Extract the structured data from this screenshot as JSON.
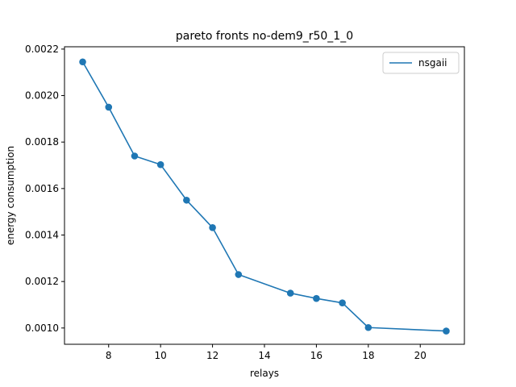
{
  "chart_data": {
    "type": "line",
    "title": "pareto fronts no-dem9_r50_1_0",
    "xlabel": "relays",
    "ylabel": "energy consumption",
    "xlim": [
      6.3,
      21.7
    ],
    "ylim": [
      0.00093,
      0.00221
    ],
    "xticks": [
      8,
      10,
      12,
      14,
      16,
      18,
      20
    ],
    "xtick_labels": [
      "8",
      "10",
      "12",
      "14",
      "16",
      "18",
      "20"
    ],
    "yticks": [
      0.001,
      0.0012,
      0.0014,
      0.0016,
      0.0018,
      0.002,
      0.0022
    ],
    "ytick_labels": [
      "0.0010",
      "0.0012",
      "0.0014",
      "0.0016",
      "0.0018",
      "0.0020",
      "0.0022"
    ],
    "grid": false,
    "legend_position": "top-right",
    "color": "#1f77b4",
    "series": [
      {
        "name": "nsgaii",
        "marker": "circle",
        "x": [
          7,
          8,
          9,
          10,
          11,
          12,
          13,
          15,
          16,
          17,
          18,
          21
        ],
        "y": [
          0.002145,
          0.00195,
          0.00174,
          0.001703,
          0.00155,
          0.001432,
          0.00123,
          0.00115,
          0.001127,
          0.001108,
          0.001002,
          0.000987
        ]
      }
    ]
  }
}
